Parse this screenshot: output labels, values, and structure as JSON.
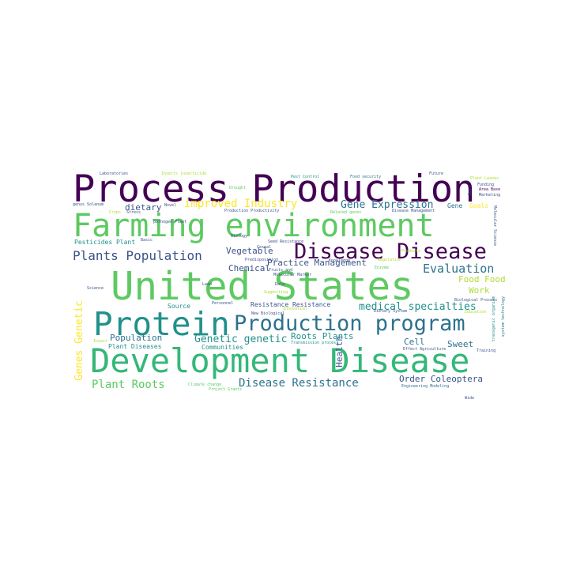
{
  "colors": {
    "dark_purple": "#440154",
    "indigo": "#3b528b",
    "teal": "#21918c",
    "teal_dark": "#2c728e",
    "green": "#5ec962",
    "green_mid": "#35b779",
    "yellow": "#fde725",
    "lime": "#addc30"
  },
  "words": [
    "Process Production",
    "Farming environment",
    "Disease Disease",
    "United States",
    "Protein",
    "Production program",
    "Development Disease",
    "Plants Population",
    "improved Industry",
    "Gene Expression",
    "Vegetable",
    "Chemical",
    "Practice Management",
    "Evaluation",
    "Food Food",
    "medical specialties",
    "Genetic genetic",
    "Population",
    "Plant Roots",
    "Disease Resistance",
    "Order Coleoptera",
    "Genes Genetic",
    "Roots Plants",
    "Sweet",
    "Cell",
    "Work",
    "Health",
    "dietary",
    "Plant Diseases",
    "Communities",
    "Resistance Resistance",
    "Pesticides Plant",
    "Source",
    "Gene",
    "Goals",
    "Laboratories",
    "Insects insecticide",
    "Future",
    "Plant Leaves",
    "Funding",
    "Area Base",
    "Marketing",
    "genus Solanum",
    "Stress",
    "Production Productivity",
    "Disease Management",
    "pathogen Plant",
    "Personnel",
    "Climate change",
    "Engineering Modeling",
    "system technology",
    "transgenic organism",
    "Molecular Science",
    "Soil",
    "Lead",
    "Data",
    "Supporting",
    "Knowledge",
    "Enzyme",
    "Regulation",
    "Pest Control",
    "Food security",
    "Biology",
    "Cereal",
    "Fruits and",
    "Novel",
    "Drought",
    "Science",
    "Crops",
    "Basic",
    "Seed Resistance",
    "Dietary System",
    "Biological Process",
    "Related genes",
    "Predisposition",
    "Project Grants",
    "Transmission process",
    "Effect Agriculture",
    "Training",
    "Products",
    "Molecular Marker",
    "New Biological",
    "Innovation",
    "Wide",
    "Insect",
    "Education"
  ]
}
